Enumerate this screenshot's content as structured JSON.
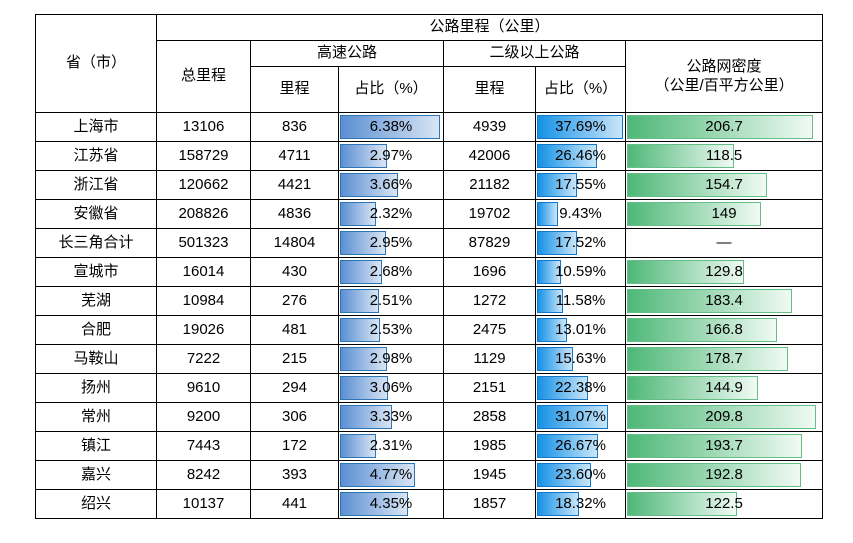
{
  "table": {
    "title": "公路里程（公里）",
    "header": {
      "province": "省（市）",
      "total": "总里程",
      "expressway_group": "高速公路",
      "grade2_group": "二级以上公路",
      "mileage": "里程",
      "share": "占比（%）",
      "density_line1": "公路网密度",
      "density_line2": "（公里/百平方公里）"
    },
    "bar_max": {
      "exp_share": 6.38,
      "g2_share": 37.69,
      "density": 209.8
    },
    "rows": [
      {
        "name": "上海市",
        "total": "13106",
        "exp_mileage": "836",
        "exp_share": "6.38%",
        "exp_share_val": 6.38,
        "g2_mileage": "4939",
        "g2_share": "37.69%",
        "g2_share_val": 37.69,
        "density": "206.7",
        "density_val": 206.7
      },
      {
        "name": "江苏省",
        "total": "158729",
        "exp_mileage": "4711",
        "exp_share": "2.97%",
        "exp_share_val": 2.97,
        "g2_mileage": "42006",
        "g2_share": "26.46%",
        "g2_share_val": 26.46,
        "density": "118.5",
        "density_val": 118.5
      },
      {
        "name": "浙江省",
        "total": "120662",
        "exp_mileage": "4421",
        "exp_share": "3.66%",
        "exp_share_val": 3.66,
        "g2_mileage": "21182",
        "g2_share": "17.55%",
        "g2_share_val": 17.55,
        "density": "154.7",
        "density_val": 154.7
      },
      {
        "name": "安徽省",
        "total": "208826",
        "exp_mileage": "4836",
        "exp_share": "2.32%",
        "exp_share_val": 2.32,
        "g2_mileage": "19702",
        "g2_share": "9.43%",
        "g2_share_val": 9.43,
        "density": "149",
        "density_val": 149
      },
      {
        "name": "长三角合计",
        "total": "501323",
        "exp_mileage": "14804",
        "exp_share": "2.95%",
        "exp_share_val": 2.95,
        "g2_mileage": "87829",
        "g2_share": "17.52%",
        "g2_share_val": 17.52,
        "density": "—",
        "density_val": null
      },
      {
        "name": "宣城市",
        "total": "16014",
        "exp_mileage": "430",
        "exp_share": "2.68%",
        "exp_share_val": 2.68,
        "g2_mileage": "1696",
        "g2_share": "10.59%",
        "g2_share_val": 10.59,
        "density": "129.8",
        "density_val": 129.8
      },
      {
        "name": "芜湖",
        "total": "10984",
        "exp_mileage": "276",
        "exp_share": "2.51%",
        "exp_share_val": 2.51,
        "g2_mileage": "1272",
        "g2_share": "11.58%",
        "g2_share_val": 11.58,
        "density": "183.4",
        "density_val": 183.4
      },
      {
        "name": "合肥",
        "total": "19026",
        "exp_mileage": "481",
        "exp_share": "2.53%",
        "exp_share_val": 2.53,
        "g2_mileage": "2475",
        "g2_share": "13.01%",
        "g2_share_val": 13.01,
        "density": "166.8",
        "density_val": 166.8
      },
      {
        "name": "马鞍山",
        "total": "7222",
        "exp_mileage": "215",
        "exp_share": "2.98%",
        "exp_share_val": 2.98,
        "g2_mileage": "1129",
        "g2_share": "15.63%",
        "g2_share_val": 15.63,
        "density": "178.7",
        "density_val": 178.7
      },
      {
        "name": "扬州",
        "total": "9610",
        "exp_mileage": "294",
        "exp_share": "3.06%",
        "exp_share_val": 3.06,
        "g2_mileage": "2151",
        "g2_share": "22.38%",
        "g2_share_val": 22.38,
        "density": "144.9",
        "density_val": 144.9
      },
      {
        "name": "常州",
        "total": "9200",
        "exp_mileage": "306",
        "exp_share": "3.33%",
        "exp_share_val": 3.33,
        "g2_mileage": "2858",
        "g2_share": "31.07%",
        "g2_share_val": 31.07,
        "density": "209.8",
        "density_val": 209.8
      },
      {
        "name": "镇江",
        "total": "7443",
        "exp_mileage": "172",
        "exp_share": "2.31%",
        "exp_share_val": 2.31,
        "g2_mileage": "1985",
        "g2_share": "26.67%",
        "g2_share_val": 26.67,
        "density": "193.7",
        "density_val": 193.7
      },
      {
        "name": "嘉兴",
        "total": "8242",
        "exp_mileage": "393",
        "exp_share": "4.77%",
        "exp_share_val": 4.77,
        "g2_mileage": "1945",
        "g2_share": "23.60%",
        "g2_share_val": 23.6,
        "density": "192.8",
        "density_val": 192.8
      },
      {
        "name": "绍兴",
        "total": "10137",
        "exp_mileage": "441",
        "exp_share": "4.35%",
        "exp_share_val": 4.35,
        "g2_mileage": "1857",
        "g2_share": "18.32%",
        "g2_share_val": 18.32,
        "density": "122.5",
        "density_val": 122.5
      }
    ]
  },
  "colors": {
    "table_border": "#000000",
    "exp_bar_start": "#5b8fd3",
    "exp_bar_end": "#d9e5f4",
    "exp_bar_border": "#2e75b6",
    "g2_bar_start": "#1591e6",
    "g2_bar_end": "#c9e6f9",
    "g2_bar_border": "#1577c8",
    "density_bar_start": "#4eb877",
    "density_bar_end": "#f0faf4",
    "density_bar_border": "#65bf85"
  },
  "chart_data": {
    "type": "table",
    "title": "公路里程（公里）",
    "columns": [
      "省（市）",
      "总里程",
      "高速公路-里程",
      "高速公路-占比（%）",
      "二级以上公路-里程",
      "二级以上公路-占比（%）",
      "公路网密度（公里/百平方公里）"
    ],
    "rows": [
      [
        "上海市",
        13106,
        836,
        6.38,
        4939,
        37.69,
        206.7
      ],
      [
        "江苏省",
        158729,
        4711,
        2.97,
        42006,
        26.46,
        118.5
      ],
      [
        "浙江省",
        120662,
        4421,
        3.66,
        21182,
        17.55,
        154.7
      ],
      [
        "安徽省",
        208826,
        4836,
        2.32,
        19702,
        9.43,
        149
      ],
      [
        "长三角合计",
        501323,
        14804,
        2.95,
        87829,
        17.52,
        null
      ],
      [
        "宣城市",
        16014,
        430,
        2.68,
        1696,
        10.59,
        129.8
      ],
      [
        "芜湖",
        10984,
        276,
        2.51,
        1272,
        11.58,
        183.4
      ],
      [
        "合肥",
        19026,
        481,
        2.53,
        2475,
        13.01,
        166.8
      ],
      [
        "马鞍山",
        7222,
        215,
        2.98,
        1129,
        15.63,
        178.7
      ],
      [
        "扬州",
        9610,
        294,
        3.06,
        2151,
        22.38,
        144.9
      ],
      [
        "常州",
        9200,
        306,
        3.33,
        2858,
        31.07,
        209.8
      ],
      [
        "镇江",
        7443,
        172,
        2.31,
        1985,
        26.67,
        193.7
      ],
      [
        "嘉兴",
        8242,
        393,
        4.77,
        1945,
        23.6,
        192.8
      ],
      [
        "绍兴",
        10137,
        441,
        4.35,
        1857,
        18.32,
        122.5
      ]
    ],
    "data_bars": {
      "高速公路-占比（%）": {
        "color": "blue-gradient",
        "scale_min": 0,
        "scale_max": 6.38
      },
      "二级以上公路-占比（%）": {
        "color": "blue-gradient",
        "scale_min": 0,
        "scale_max": 37.69
      },
      "公路网密度（公里/百平方公里）": {
        "color": "green-gradient",
        "scale_min": 0,
        "scale_max": 209.8
      }
    }
  }
}
